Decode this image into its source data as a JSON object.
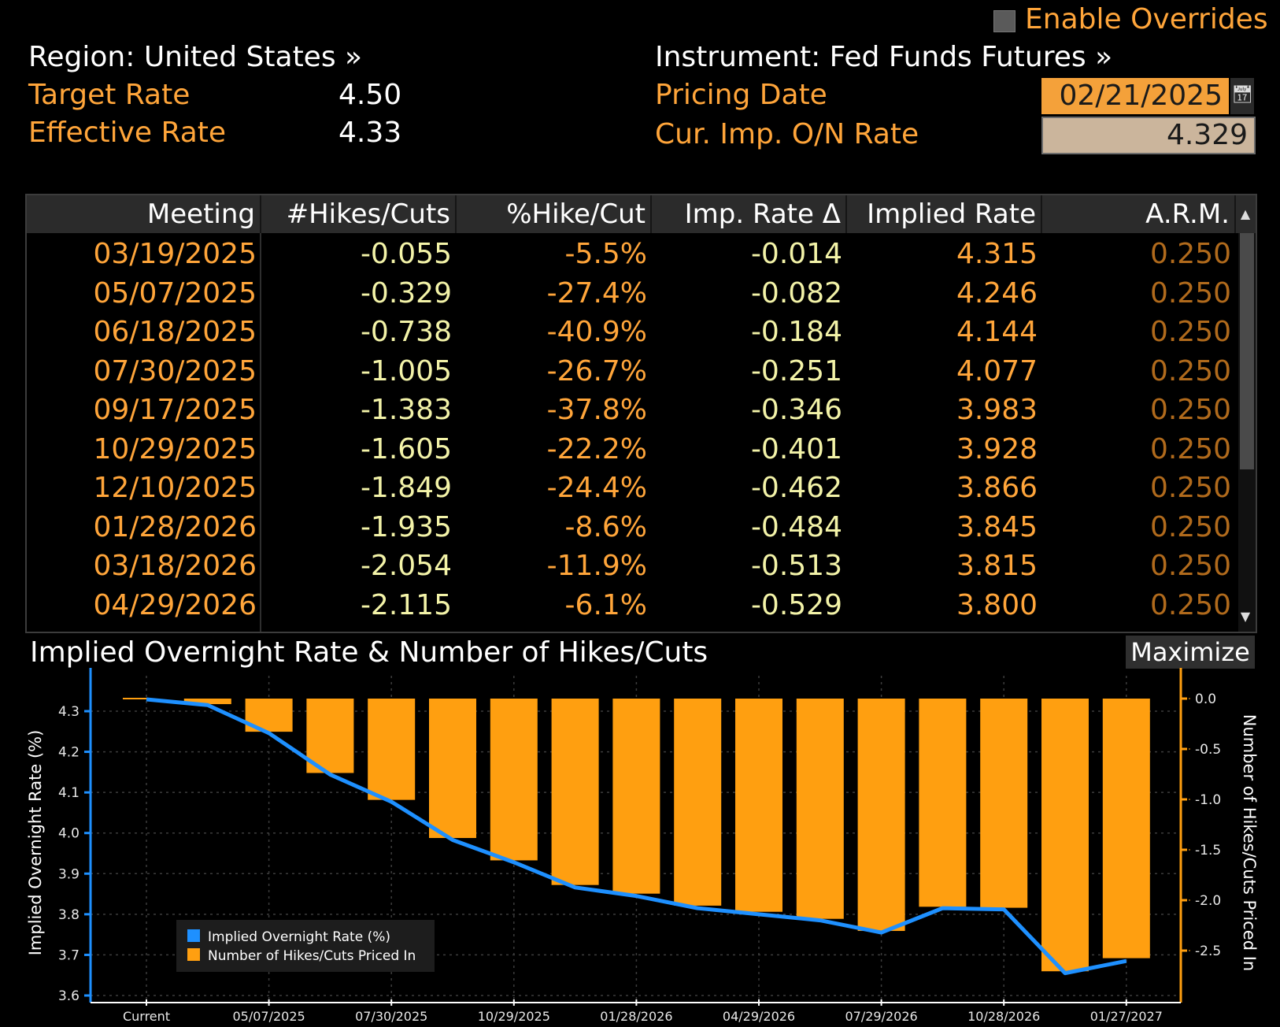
{
  "header": {
    "enable_overrides": "Enable Overrides",
    "region": "Region: United States »",
    "instrument": "Instrument: Fed Funds Futures »",
    "target_rate_label": "Target Rate",
    "target_rate_value": "4.50",
    "effective_rate_label": "Effective Rate",
    "effective_rate_value": "4.33",
    "pricing_date_label": "Pricing Date",
    "pricing_date_value": "02/21/2025",
    "cur_imp_label": "Cur. Imp. O/N Rate",
    "cur_imp_value": "4.329"
  },
  "table": {
    "columns": [
      "Meeting",
      "#Hikes/Cuts",
      "%Hike/Cut",
      "Imp. Rate Δ",
      "Implied Rate",
      "A.R.M."
    ],
    "rows": [
      [
        "03/19/2025",
        "-0.055",
        "-5.5%",
        "-0.014",
        "4.315",
        "0.250"
      ],
      [
        "05/07/2025",
        "-0.329",
        "-27.4%",
        "-0.082",
        "4.246",
        "0.250"
      ],
      [
        "06/18/2025",
        "-0.738",
        "-40.9%",
        "-0.184",
        "4.144",
        "0.250"
      ],
      [
        "07/30/2025",
        "-1.005",
        "-26.7%",
        "-0.251",
        "4.077",
        "0.250"
      ],
      [
        "09/17/2025",
        "-1.383",
        "-37.8%",
        "-0.346",
        "3.983",
        "0.250"
      ],
      [
        "10/29/2025",
        "-1.605",
        "-22.2%",
        "-0.401",
        "3.928",
        "0.250"
      ],
      [
        "12/10/2025",
        "-1.849",
        "-24.4%",
        "-0.462",
        "3.866",
        "0.250"
      ],
      [
        "01/28/2026",
        "-1.935",
        "-8.6%",
        "-0.484",
        "3.845",
        "0.250"
      ],
      [
        "03/18/2026",
        "-2.054",
        "-11.9%",
        "-0.513",
        "3.815",
        "0.250"
      ],
      [
        "04/29/2026",
        "-2.115",
        "-6.1%",
        "-0.529",
        "3.800",
        "0.250"
      ]
    ]
  },
  "chart_section": {
    "title": "Implied Overnight Rate & Number of Hikes/Cuts",
    "maximize_label": "Maximize"
  },
  "chart_data": {
    "type": "bar",
    "categories": [
      "Current",
      "",
      "05/07/2025",
      "",
      "07/30/2025",
      "",
      "10/29/2025",
      "",
      "01/28/2026",
      "",
      "04/29/2026",
      "",
      "07/29/2026",
      "",
      "10/28/2026",
      "",
      "01/27/2027"
    ],
    "x_tick_labels": [
      "Current",
      "05/07/2025",
      "07/30/2025",
      "10/29/2025",
      "01/28/2026",
      "04/29/2026",
      "07/29/2026",
      "10/28/2026",
      "01/27/2027"
    ],
    "series": [
      {
        "name": "Implied Overnight Rate (%)",
        "type": "line",
        "axis": "left",
        "color": "#1e90ff",
        "values": [
          4.329,
          4.315,
          4.246,
          4.144,
          4.077,
          3.983,
          3.928,
          3.866,
          3.845,
          3.815,
          3.8,
          3.785,
          3.755,
          3.815,
          3.812,
          3.655,
          3.685
        ]
      },
      {
        "name": "Number of Hikes/Cuts Priced In",
        "type": "bar",
        "axis": "right",
        "color": "#ff9f10",
        "values": [
          0,
          -0.055,
          -0.329,
          -0.738,
          -1.005,
          -1.383,
          -1.605,
          -1.849,
          -1.935,
          -2.054,
          -2.115,
          -2.185,
          -2.305,
          -2.065,
          -2.075,
          -2.705,
          -2.575
        ]
      }
    ],
    "ylabel": "Implied Overnight Rate (%)",
    "y2label": "Number of Hikes/Cuts Priced In",
    "ylim": [
      3.6,
      4.3
    ],
    "y_ticks": [
      "4.3",
      "4.2",
      "4.1",
      "4.0",
      "3.9",
      "3.8",
      "3.7",
      "3.6"
    ],
    "y2lim": [
      -2.5,
      0.0
    ],
    "y2_ticks": [
      "0.0",
      "-0.5",
      "-1.0",
      "-1.5",
      "-2.0",
      "-2.5"
    ],
    "legend_position": "bottom-left",
    "grid": true,
    "colors": {
      "accent": "#ffa53a",
      "line": "#1e90ff",
      "bar": "#ff9f10"
    }
  }
}
